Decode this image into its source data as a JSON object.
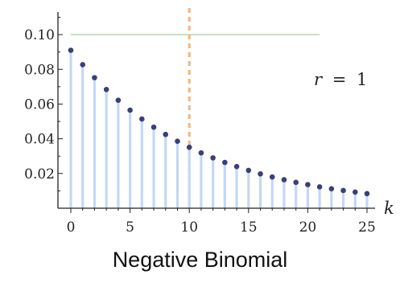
{
  "chart_data": {
    "type": "scatter",
    "subtype": "stem",
    "caption": "Negative Binomial",
    "annotation": {
      "variable": "r",
      "operator": "=",
      "value": "1"
    },
    "xlabel": "k",
    "ylabel": "",
    "xlim": [
      -0.7,
      25.6
    ],
    "ylim": [
      0,
      0.113
    ],
    "x_ticks": [
      0,
      5,
      10,
      15,
      20,
      25
    ],
    "y_ticks": [
      0.02,
      0.04,
      0.06,
      0.08,
      0.1
    ],
    "y_tick_labels": [
      "0.02",
      "0.04",
      "0.06",
      "0.08",
      "0.10"
    ],
    "grid": false,
    "reference_lines": [
      {
        "orientation": "horizontal",
        "y": 0.1,
        "x_from": 0,
        "x_to": 21,
        "color": "#9edb95",
        "style": "solid"
      },
      {
        "orientation": "vertical",
        "x": 10,
        "color": "#f2b57a",
        "style": "dashed"
      }
    ],
    "colors": {
      "stem": "#c3d8f5",
      "point": "#3b3f78",
      "axis": "#222222"
    },
    "series": [
      {
        "x": [
          0,
          1,
          2,
          3,
          4,
          5,
          6,
          7,
          8,
          9,
          10,
          11,
          12,
          13,
          14,
          15,
          16,
          17,
          18,
          19,
          20,
          21,
          22,
          23,
          24,
          25
        ],
        "values": [
          0.091,
          0.0827,
          0.0752,
          0.0684,
          0.0622,
          0.0565,
          0.0514,
          0.0467,
          0.0425,
          0.0386,
          0.0351,
          0.0319,
          0.029,
          0.0264,
          0.024,
          0.0218,
          0.0198,
          0.018,
          0.0164,
          0.0149,
          0.0136,
          0.0123,
          0.0112,
          0.0102,
          0.0093,
          0.0084
        ]
      }
    ]
  }
}
